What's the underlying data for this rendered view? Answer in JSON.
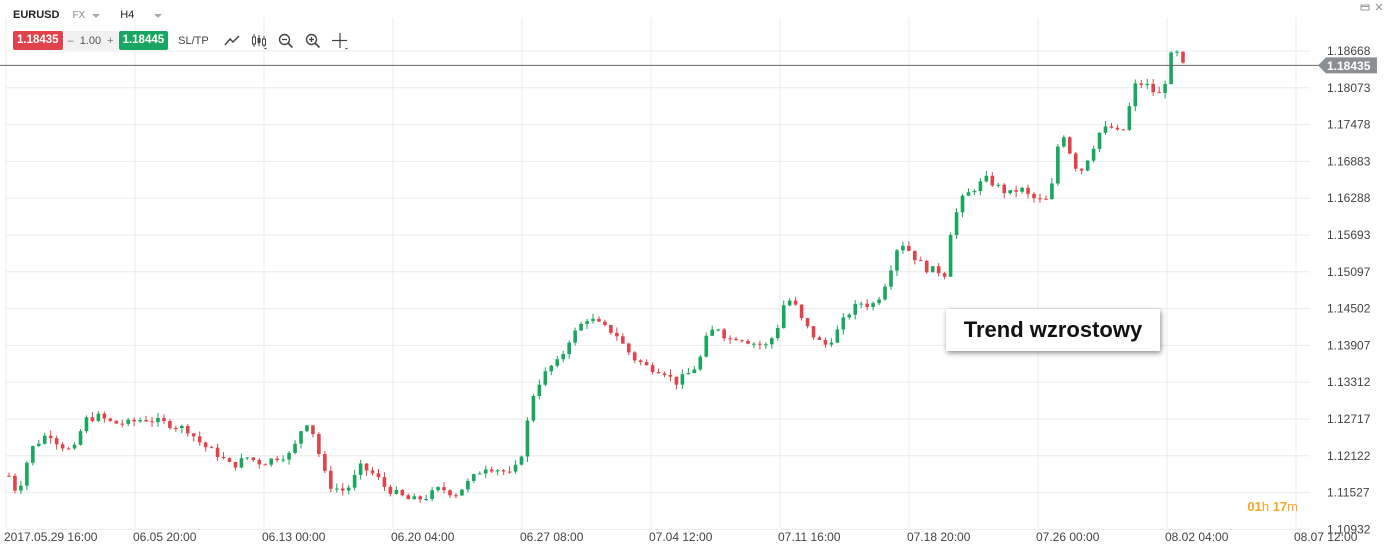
{
  "toolbar": {
    "symbol": "EURUSD",
    "market": "FX",
    "timeframe": "H4",
    "sell_price": "1.18435",
    "buy_price": "1.18445",
    "quantity": "1.00",
    "minus": "–",
    "plus": "+",
    "sltp": "SL/TP",
    "icons": [
      "line-chart-icon",
      "candles-icon",
      "zoom-out-icon",
      "zoom-in-icon",
      "crosshair-icon"
    ],
    "window_icons": [
      "restore-icon",
      "close-icon"
    ]
  },
  "annotation": "Trend wzrostowy",
  "countdown": {
    "hours": "01",
    "h_unit": "h",
    "minutes": "17",
    "m_unit": "m"
  },
  "colors": {
    "up": "#19a660",
    "down": "#e0434b",
    "grid": "#ececec",
    "price_line": "#666666",
    "price_tag": "#8a8f94",
    "countdown": "#f5a623"
  },
  "chart_data": {
    "type": "candlestick",
    "symbol": "EURUSD",
    "timeframe": "H4",
    "current_price": "1.18435",
    "y_ticks": [
      "1.18668",
      "1.18073",
      "1.17478",
      "1.16883",
      "1.16288",
      "1.15693",
      "1.15097",
      "1.14502",
      "1.13907",
      "1.13312",
      "1.12717",
      "1.12122",
      "1.11527",
      "1.10932"
    ],
    "ylim": [
      1.1093,
      1.1927
    ],
    "x_ticks": [
      "2017.05.29 16:00",
      "06.05 20:00",
      "06.13 00:00",
      "06.20 04:00",
      "06.27 08:00",
      "07.04 12:00",
      "07.11 16:00",
      "07.18 20:00",
      "07.26 00:00",
      "08.02 04:00",
      "08.07 12:00"
    ],
    "grid": true,
    "close_path": [
      [
        0,
        1.118
      ],
      [
        5,
        1.116
      ],
      [
        10,
        1.1155
      ],
      [
        15,
        1.119
      ],
      [
        25,
        1.123
      ],
      [
        30,
        1.1235
      ],
      [
        40,
        1.125
      ],
      [
        50,
        1.1232
      ],
      [
        60,
        1.1222
      ],
      [
        68,
        1.1225
      ],
      [
        75,
        1.127
      ],
      [
        90,
        1.1276
      ],
      [
        105,
        1.1265
      ],
      [
        120,
        1.1265
      ],
      [
        135,
        1.1272
      ],
      [
        150,
        1.1268
      ],
      [
        165,
        1.1262
      ],
      [
        180,
        1.1255
      ],
      [
        195,
        1.123
      ],
      [
        210,
        1.1215
      ],
      [
        225,
        1.1195
      ],
      [
        240,
        1.121
      ],
      [
        255,
        1.12
      ],
      [
        270,
        1.121
      ],
      [
        285,
        1.1215
      ],
      [
        296,
        1.126
      ],
      [
        303,
        1.127
      ],
      [
        310,
        1.123
      ],
      [
        318,
        1.1185
      ],
      [
        325,
        1.1162
      ],
      [
        340,
        1.1155
      ],
      [
        355,
        1.1195
      ],
      [
        370,
        1.118
      ],
      [
        380,
        1.116
      ],
      [
        392,
        1.115
      ],
      [
        405,
        1.114
      ],
      [
        420,
        1.1145
      ],
      [
        435,
        1.116
      ],
      [
        450,
        1.115
      ],
      [
        465,
        1.1172
      ],
      [
        480,
        1.1195
      ],
      [
        495,
        1.119
      ],
      [
        505,
        1.1182
      ],
      [
        515,
        1.12
      ],
      [
        522,
        1.126
      ],
      [
        530,
        1.132
      ],
      [
        545,
        1.1355
      ],
      [
        555,
        1.1365
      ],
      [
        565,
        1.14
      ],
      [
        575,
        1.142
      ],
      [
        582,
        1.1435
      ],
      [
        590,
        1.143
      ],
      [
        600,
        1.142
      ],
      [
        612,
        1.141
      ],
      [
        620,
        1.139
      ],
      [
        630,
        1.137
      ],
      [
        645,
        1.1355
      ],
      [
        660,
        1.135
      ],
      [
        672,
        1.133
      ],
      [
        685,
        1.1345
      ],
      [
        695,
        1.136
      ],
      [
        705,
        1.141
      ],
      [
        715,
        1.142
      ],
      [
        725,
        1.14
      ],
      [
        735,
        1.1405
      ],
      [
        750,
        1.1395
      ],
      [
        765,
        1.139
      ],
      [
        775,
        1.142
      ],
      [
        782,
        1.146
      ],
      [
        790,
        1.1465
      ],
      [
        800,
        1.143
      ],
      [
        812,
        1.1405
      ],
      [
        822,
        1.139
      ],
      [
        832,
        1.1405
      ],
      [
        845,
        1.144
      ],
      [
        858,
        1.146
      ],
      [
        870,
        1.1455
      ],
      [
        880,
        1.1475
      ],
      [
        890,
        1.152
      ],
      [
        898,
        1.156
      ],
      [
        905,
        1.155
      ],
      [
        915,
        1.153
      ],
      [
        925,
        1.1515
      ],
      [
        940,
        1.151
      ],
      [
        945,
        1.1505
      ],
      [
        950,
        1.158
      ],
      [
        960,
        1.1625
      ],
      [
        970,
        1.164
      ],
      [
        985,
        1.166
      ],
      [
        995,
        1.165
      ],
      [
        1008,
        1.1635
      ],
      [
        1020,
        1.1645
      ],
      [
        1030,
        1.163
      ],
      [
        1045,
        1.1622
      ],
      [
        1052,
        1.165
      ],
      [
        1058,
        1.1715
      ],
      [
        1065,
        1.1735
      ],
      [
        1072,
        1.169
      ],
      [
        1080,
        1.167
      ],
      [
        1090,
        1.17
      ],
      [
        1100,
        1.1735
      ],
      [
        1110,
        1.1745
      ],
      [
        1122,
        1.173
      ],
      [
        1128,
        1.176
      ],
      [
        1134,
        1.181
      ],
      [
        1145,
        1.1815
      ],
      [
        1155,
        1.18
      ],
      [
        1162,
        1.1795
      ],
      [
        1168,
        1.183
      ],
      [
        1175,
        1.188
      ],
      [
        1180,
        1.185
      ],
      [
        1184,
        1.1843
      ]
    ]
  }
}
